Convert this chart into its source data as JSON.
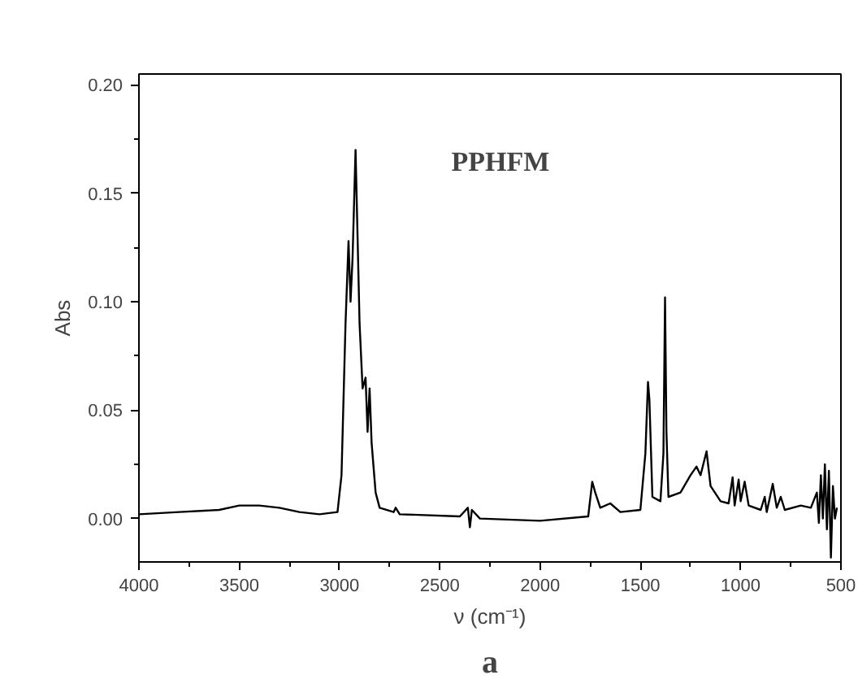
{
  "chart_data": {
    "type": "line",
    "title": "PPHFM",
    "xlabel": "ν (cm⁻¹)",
    "ylabel": "Abs",
    "annotations": [
      "a"
    ],
    "x": [
      4000,
      3800,
      3600,
      3500,
      3400,
      3300,
      3200,
      3100,
      3010,
      2990,
      2970,
      2955,
      2945,
      2935,
      2920,
      2910,
      2900,
      2885,
      2870,
      2860,
      2850,
      2840,
      2820,
      2800,
      2730,
      2720,
      2700,
      2400,
      2360,
      2350,
      2340,
      2300,
      2000,
      1760,
      1740,
      1725,
      1700,
      1650,
      1600,
      1500,
      1475,
      1462,
      1455,
      1440,
      1400,
      1385,
      1377,
      1370,
      1360,
      1300,
      1250,
      1220,
      1200,
      1170,
      1150,
      1100,
      1060,
      1040,
      1030,
      1010,
      1000,
      980,
      960,
      900,
      880,
      870,
      840,
      820,
      800,
      780,
      700,
      650,
      620,
      610,
      600,
      590,
      580,
      570,
      560,
      550,
      540,
      530,
      520
    ],
    "series": [
      {
        "color": "#000000",
        "values": [
          0.002,
          0.003,
          0.004,
          0.006,
          0.006,
          0.005,
          0.003,
          0.002,
          0.003,
          0.02,
          0.09,
          0.128,
          0.1,
          0.12,
          0.17,
          0.13,
          0.09,
          0.06,
          0.065,
          0.04,
          0.06,
          0.035,
          0.012,
          0.005,
          0.003,
          0.005,
          0.002,
          0.001,
          0.005,
          -0.004,
          0.004,
          0.0,
          -0.001,
          0.001,
          0.017,
          0.012,
          0.005,
          0.007,
          0.003,
          0.004,
          0.03,
          0.063,
          0.055,
          0.01,
          0.008,
          0.03,
          0.102,
          0.04,
          0.01,
          0.012,
          0.02,
          0.024,
          0.02,
          0.031,
          0.015,
          0.008,
          0.007,
          0.019,
          0.006,
          0.018,
          0.008,
          0.017,
          0.006,
          0.004,
          0.01,
          0.003,
          0.016,
          0.005,
          0.01,
          0.004,
          0.006,
          0.005,
          0.012,
          -0.002,
          0.02,
          0.0,
          0.025,
          -0.005,
          0.022,
          -0.018,
          0.015,
          0.0,
          0.005
        ]
      }
    ],
    "xlim": [
      4000,
      500
    ],
    "ylim": [
      -0.02,
      0.205
    ],
    "xticks": [
      4000,
      {
        "value": 3750,
        "label": null
      },
      3500,
      {
        "value": 3250,
        "label": null
      },
      3000,
      {
        "value": 2750,
        "label": null
      },
      2500,
      {
        "value": 2250,
        "label": null
      },
      2000,
      {
        "value": 1750,
        "label": null
      },
      1500,
      {
        "value": 1250,
        "label": null
      },
      1000,
      {
        "value": 750,
        "label": null
      },
      500
    ],
    "yticks": [
      {
        "value": 0.0,
        "label": "0.00"
      },
      {
        "value": 0.025,
        "label": null
      },
      {
        "value": 0.05,
        "label": "0.05"
      },
      {
        "value": 0.075,
        "label": null
      },
      {
        "value": 0.1,
        "label": "0.10"
      },
      {
        "value": 0.125,
        "label": null
      },
      {
        "value": 0.15,
        "label": "0.15"
      },
      {
        "value": 0.175,
        "label": null
      },
      {
        "value": 0.2,
        "label": "0.20"
      }
    ],
    "grid": false,
    "marker": "none",
    "line_style": "solid"
  }
}
